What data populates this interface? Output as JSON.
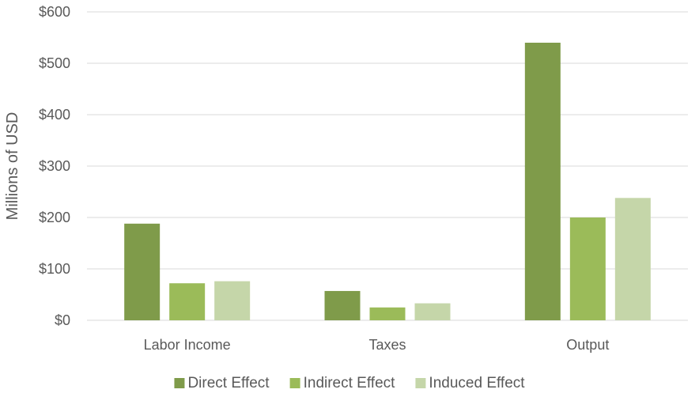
{
  "chart_data": {
    "type": "bar",
    "title": "",
    "xlabel": "",
    "ylabel": "Millions of USD",
    "categories": [
      "Labor Income",
      "Taxes",
      "Output"
    ],
    "series": [
      {
        "name": "Direct Effect",
        "values": [
          188,
          57,
          540
        ],
        "color": "#7f9b4a"
      },
      {
        "name": "Indirect Effect",
        "values": [
          72,
          25,
          200
        ],
        "color": "#9bbb59"
      },
      {
        "name": "Induced Effect",
        "values": [
          76,
          33,
          238
        ],
        "color": "#c5d6a9"
      }
    ],
    "ylim": [
      0,
      600
    ],
    "yticks": [
      0,
      100,
      200,
      300,
      400,
      500,
      600
    ],
    "ytick_labels": [
      "$0",
      "$100",
      "$200",
      "$300",
      "$400",
      "$500",
      "$600"
    ],
    "grid": true,
    "legend_position": "bottom"
  }
}
